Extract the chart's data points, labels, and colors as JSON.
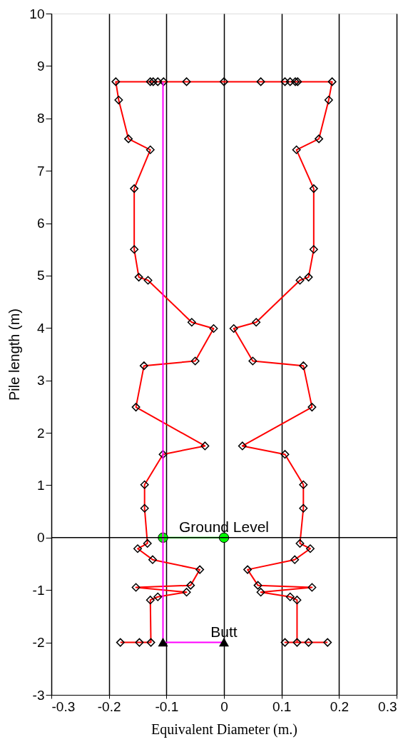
{
  "chart_data": {
    "type": "line",
    "xlabel": "Equivalent Diameter (m.)",
    "ylabel": "Pile length (m)",
    "xlim": [
      -0.3,
      0.3
    ],
    "xticks": [
      -0.3,
      -0.2,
      -0.1,
      0,
      0.1,
      0.2,
      0.3
    ],
    "ylim": [
      -3,
      10
    ],
    "yticks": [
      -3,
      -2,
      -1,
      0,
      1,
      2,
      3,
      4,
      5,
      6,
      7,
      8,
      9,
      10
    ],
    "grid": "x",
    "ref_lines": [
      {
        "axis": "y",
        "value": 0,
        "color": "#000000"
      }
    ],
    "annotations": [
      {
        "text": "Ground Level",
        "x": 0,
        "y": 0
      },
      {
        "text": "Butt",
        "x": 0,
        "y": -2
      }
    ],
    "series": [
      {
        "color": "#ff0000",
        "marker": "diamond",
        "line_style": "solid",
        "x": [
          -0.18,
          -0.147,
          -0.127,
          -0.128,
          -0.115,
          -0.065,
          -0.153,
          -0.058,
          -0.042,
          -0.124,
          -0.15,
          -0.133,
          -0.138,
          -0.138,
          -0.106,
          -0.033,
          -0.153,
          -0.139,
          -0.05,
          -0.018,
          -0.056,
          -0.132,
          -0.148,
          -0.156,
          -0.156,
          -0.128,
          -0.166,
          -0.183,
          -0.188,
          -0.128,
          -0.123,
          -0.115,
          -0.105,
          -0.065,
          0,
          0.064,
          0.106,
          0.115,
          0.124,
          0.128,
          0.188,
          0.182,
          0.165,
          0.126,
          0.156,
          0.156,
          0.147,
          0.132,
          0.056,
          0.017,
          0.05,
          0.138,
          0.153,
          0.032,
          0.106,
          0.138,
          0.138,
          0.132,
          0.15,
          0.123,
          0.041,
          0.059,
          0.153,
          0.064,
          0.115,
          0.127,
          0.127,
          0.106,
          0.147,
          0.18
        ],
        "values": [
          -2,
          -2,
          -2,
          -1.19,
          -1.13,
          -1.04,
          -0.95,
          -0.91,
          -0.61,
          -0.42,
          -0.21,
          -0.11,
          0.56,
          1.01,
          1.59,
          1.75,
          2.49,
          3.28,
          3.37,
          3.99,
          4.11,
          4.91,
          4.97,
          5.5,
          6.66,
          7.4,
          7.61,
          8.35,
          8.7,
          8.7,
          8.7,
          8.7,
          8.7,
          8.7,
          8.7,
          8.7,
          8.7,
          8.7,
          8.7,
          8.7,
          8.7,
          8.35,
          7.61,
          7.4,
          6.66,
          5.5,
          4.97,
          4.91,
          4.11,
          3.99,
          3.37,
          3.28,
          2.49,
          1.75,
          1.59,
          1.01,
          0.56,
          -0.11,
          -0.21,
          -0.42,
          -0.61,
          -0.91,
          -0.95,
          -1.04,
          -1.13,
          -1.19,
          -2,
          -2,
          -2,
          -2
        ]
      },
      {
        "color": "#00ff00",
        "marker": "circle",
        "line_style": "solid",
        "x": [
          -0.106,
          0
        ],
        "values": [
          0,
          0
        ]
      },
      {
        "color": "#ff00ff",
        "marker": "none",
        "line_style": "solid",
        "x": [
          0,
          -0.106,
          -0.106
        ],
        "values": [
          -2,
          -2,
          8.7
        ]
      },
      {
        "type": "scatter",
        "color": "#000000",
        "marker": "triangle",
        "x": [
          -0.106,
          0
        ],
        "values": [
          -2,
          -2
        ]
      }
    ]
  }
}
